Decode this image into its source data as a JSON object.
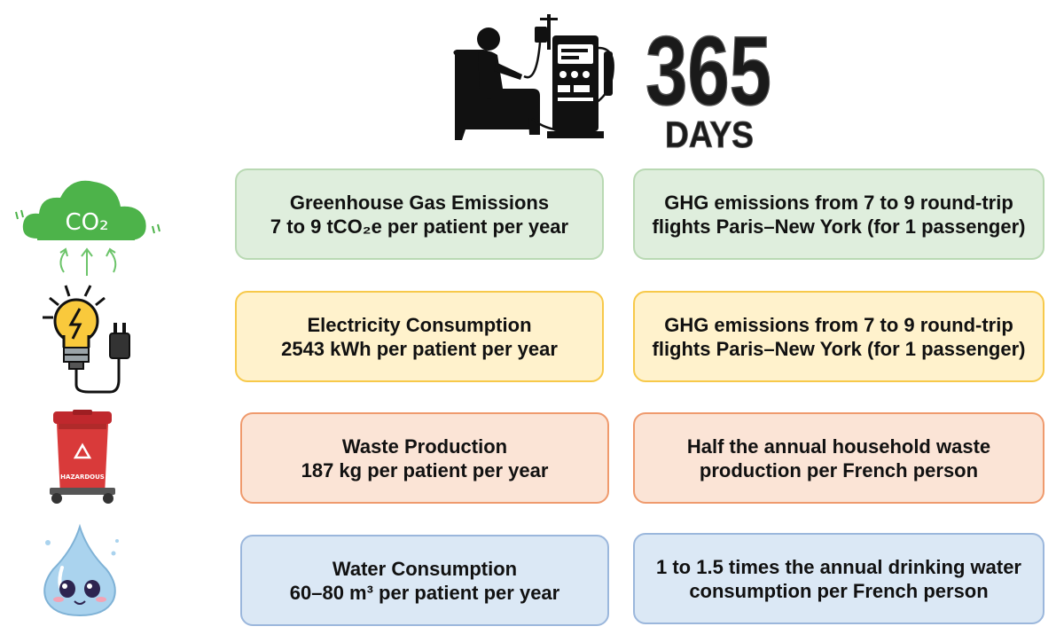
{
  "header": {
    "days_number": "365",
    "days_label": "DAYS"
  },
  "icons": {
    "co2_label": "CO₂",
    "bin_label": "HAZARDOUS"
  },
  "rows": [
    {
      "metric_title": "Greenhouse Gas Emissions",
      "metric_value": "7 to 9 tCO₂e per patient per year",
      "equivalent_line1": "GHG emissions from 7 to 9 round-trip",
      "equivalent_line2": "flights Paris–New York (for 1 passenger)"
    },
    {
      "metric_title": "Electricity Consumption",
      "metric_value": "2543 kWh per patient per year",
      "equivalent_line1": "GHG emissions from 7 to 9 round-trip",
      "equivalent_line2": "flights Paris–New York (for 1 passenger)"
    },
    {
      "metric_title": "Waste Production",
      "metric_value": "187 kg per patient per year",
      "equivalent_line1": "Half the annual household waste",
      "equivalent_line2": "production per French person"
    },
    {
      "metric_title": "Water Consumption",
      "metric_value": "60–80 m³ per patient per year",
      "equivalent_line1": "1 to 1.5 times the annual drinking water",
      "equivalent_line2": "consumption per French person"
    }
  ],
  "colors": {
    "green": "#dfeedd",
    "yellow": "#fff2cc",
    "orange": "#fbe4d6",
    "blue": "#dbe8f5"
  }
}
